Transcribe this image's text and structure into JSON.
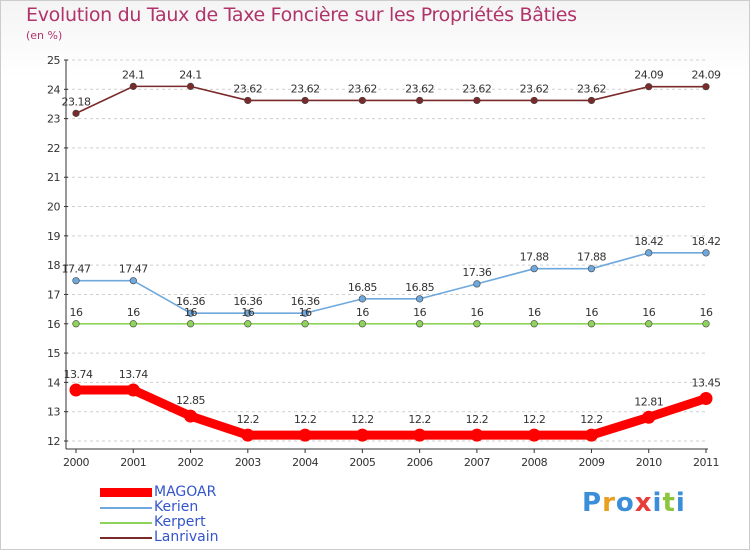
{
  "title": "Evolution du Taux de Taxe Foncière sur les Propriétés Bâties",
  "unit_label": "(en %)",
  "brand": {
    "text": "Proxiti",
    "colors": [
      "#3a8fd8",
      "#e8a020",
      "#3a8fd8",
      "#e63c3c",
      "#3a8fd8",
      "#8cc63f",
      "#3a8fd8"
    ]
  },
  "chart_data": {
    "type": "line",
    "x": [
      2000,
      2001,
      2002,
      2003,
      2004,
      2005,
      2006,
      2007,
      2008,
      2009,
      2010,
      2011
    ],
    "x_tick_labels": [
      "2000",
      "2001",
      "2002",
      "2003",
      "2004",
      "2005",
      "2006",
      "2007",
      "2008",
      "2009",
      "2010",
      "2011"
    ],
    "ylim": [
      12,
      25
    ],
    "y_ticks": [
      12,
      13,
      14,
      15,
      16,
      17,
      18,
      19,
      20,
      21,
      22,
      23,
      24,
      25
    ],
    "grid": "horizontal dashed",
    "legend_position": "bottom-left",
    "series": [
      {
        "name": "MAGOAR",
        "color": "#ff0000",
        "values": [
          13.74,
          13.74,
          12.85,
          12.2,
          12.2,
          12.2,
          12.2,
          12.2,
          12.2,
          12.2,
          12.81,
          13.45
        ],
        "labels": [
          "13.74",
          "13.74",
          "12.85",
          "12.2",
          "12.2",
          "12.2",
          "12.2",
          "12.2",
          "12.2",
          "12.2",
          "12.81",
          "13.45"
        ]
      },
      {
        "name": "Kerien",
        "color": "#6fa8dc",
        "values": [
          17.47,
          17.47,
          16.36,
          16.36,
          16.36,
          16.85,
          16.85,
          17.36,
          17.88,
          17.88,
          18.42,
          18.42
        ],
        "labels": [
          "17.47",
          "17.47",
          "16.36",
          "16.36",
          "16.36",
          "16.85",
          "16.85",
          "17.36",
          "17.88",
          "17.88",
          "18.42",
          "18.42"
        ]
      },
      {
        "name": "Kerpert",
        "color": "#8ed35a",
        "values": [
          16,
          16,
          16,
          16,
          16,
          16,
          16,
          16,
          16,
          16,
          16,
          16
        ],
        "labels": [
          "16",
          "16",
          "16",
          "16",
          "16",
          "16",
          "16",
          "16",
          "16",
          "16",
          "16",
          "16"
        ]
      },
      {
        "name": "Lanrivain",
        "color": "#7a2a2a",
        "values": [
          23.18,
          24.1,
          24.1,
          23.62,
          23.62,
          23.62,
          23.62,
          23.62,
          23.62,
          23.62,
          24.09,
          24.09
        ],
        "labels": [
          "23.18",
          "24.1",
          "24.1",
          "23.62",
          "23.62",
          "23.62",
          "23.62",
          "23.62",
          "23.62",
          "23.62",
          "24.09",
          "24.09"
        ]
      }
    ]
  }
}
